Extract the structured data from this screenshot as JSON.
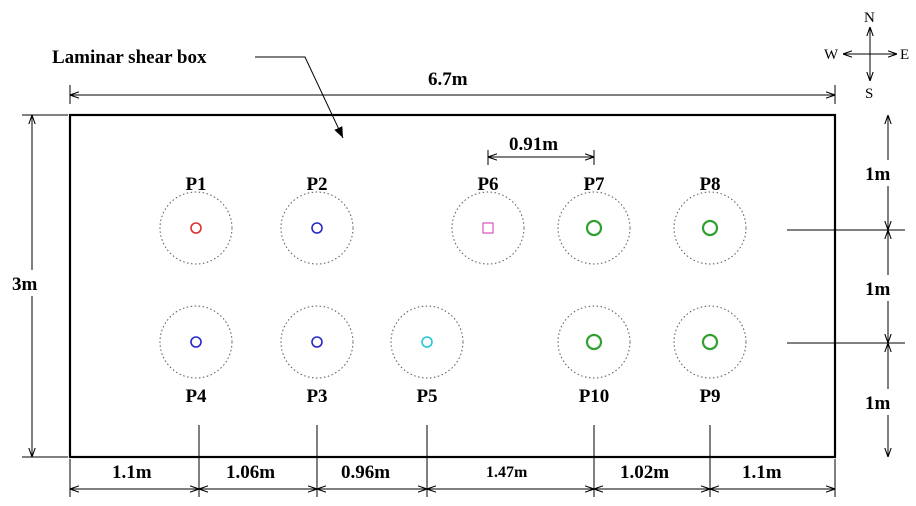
{
  "title": "Laminar shear box",
  "compass": {
    "n": "N",
    "s": "S",
    "e": "E",
    "w": "W"
  },
  "overall_width_label": "6.7m",
  "height_label": "3m",
  "spacing_label_top": "0.91m",
  "row_spacing_labels": [
    "1m",
    "1m",
    "1m"
  ],
  "bottom_spacing_labels": [
    "1.1m",
    "1.06m",
    "0.96m",
    "1.47m",
    "1.02m",
    "1.1m"
  ],
  "piles": [
    {
      "label": "P1",
      "color": "#e03030",
      "marker": "circle"
    },
    {
      "label": "P2",
      "color": "#2828c8",
      "marker": "circle"
    },
    {
      "label": "P6",
      "color": "#e060c0",
      "marker": "square"
    },
    {
      "label": "P7",
      "color": "#30a030",
      "marker": "circle"
    },
    {
      "label": "P8",
      "color": "#30a030",
      "marker": "circle"
    },
    {
      "label": "P4",
      "color": "#2828c8",
      "marker": "circle"
    },
    {
      "label": "P3",
      "color": "#2828c8",
      "marker": "circle"
    },
    {
      "label": "P5",
      "color": "#20c8d8",
      "marker": "circle"
    },
    {
      "label": "P10",
      "color": "#30a030",
      "marker": "circle"
    },
    {
      "label": "P9",
      "color": "#30a030",
      "marker": "circle"
    }
  ]
}
